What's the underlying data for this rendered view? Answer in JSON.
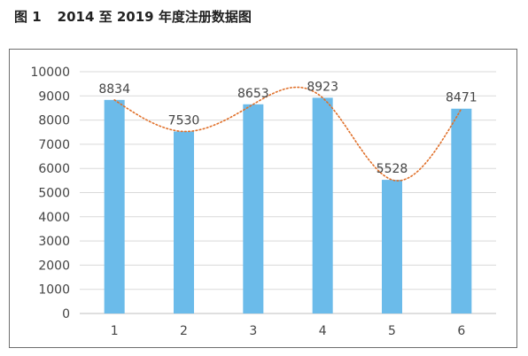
{
  "figure": {
    "label": "图 1",
    "text": "2014 至 2019 年度注册数据图"
  },
  "colors": {
    "bar": "#6bbbea",
    "trend": "#e0702a",
    "grid": "#d9d9d9",
    "axis": "#bfbfbf",
    "text": "#444444"
  },
  "chart_data": {
    "type": "bar",
    "categories": [
      "1",
      "2",
      "3",
      "4",
      "5",
      "6"
    ],
    "values": [
      8834,
      7530,
      8653,
      8923,
      5528,
      8471
    ],
    "ylim": [
      0,
      10000
    ],
    "yticks": [
      0,
      1000,
      2000,
      3000,
      4000,
      5000,
      6000,
      7000,
      8000,
      9000,
      10000
    ],
    "grid": true,
    "trendline": {
      "style": "dotted",
      "type": "polynomial"
    }
  }
}
